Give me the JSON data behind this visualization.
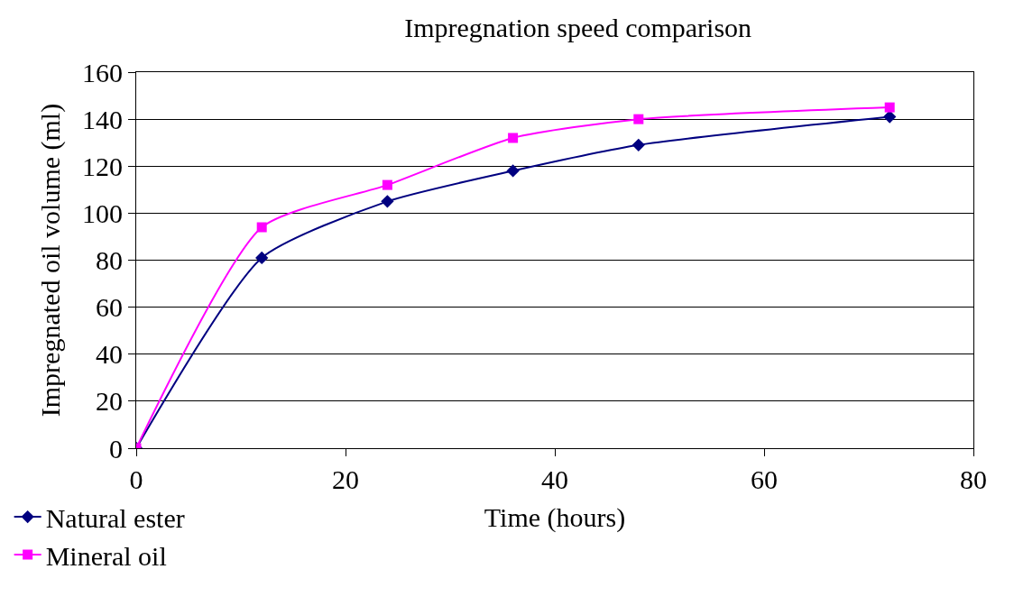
{
  "chart_data": {
    "type": "line",
    "title": "Impregnation speed comparison",
    "xlabel": "Time (hours)",
    "ylabel": "Impregnated oil volume (ml)",
    "x": [
      0,
      12,
      24,
      36,
      48,
      72
    ],
    "xlim": [
      0,
      80
    ],
    "xticks": [
      0,
      20,
      40,
      60,
      80
    ],
    "ylim": [
      0,
      160
    ],
    "yticks": [
      0,
      20,
      40,
      60,
      80,
      100,
      120,
      140,
      160
    ],
    "grid": "y",
    "legend": "bottom left",
    "line_style": "solid",
    "series": [
      {
        "name": "Natural ester",
        "color": "#000080",
        "marker": "diamond",
        "values": [
          0,
          81,
          105,
          118,
          129,
          141
        ]
      },
      {
        "name": "Mineral oil",
        "color": "#ff00ff",
        "marker": "square",
        "values": [
          0,
          94,
          112,
          132,
          140,
          145
        ]
      }
    ]
  }
}
